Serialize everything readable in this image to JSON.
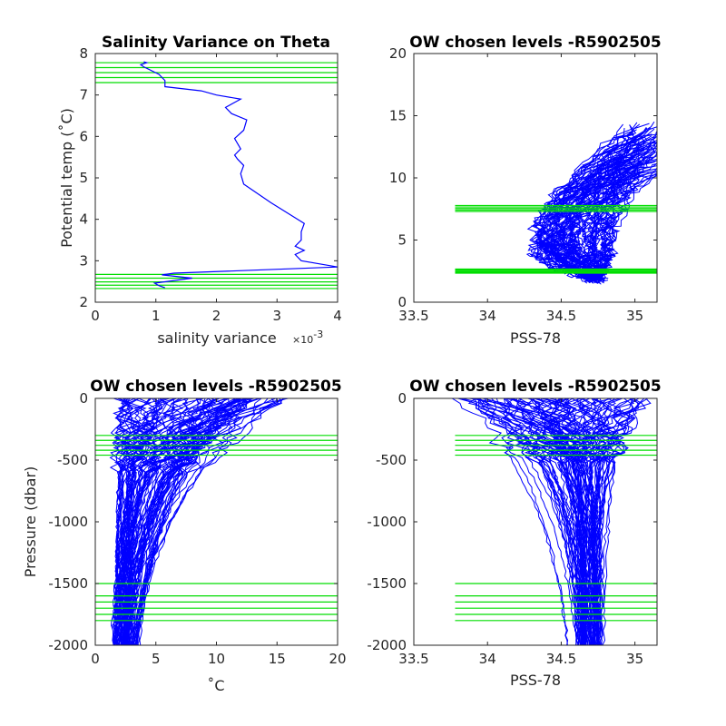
{
  "figure": {
    "background": "#ffffff",
    "profile_color": "#0000ff",
    "level_color": "#00dd00"
  },
  "chart_data": [
    {
      "id": "p1",
      "type": "line",
      "title": "Salinity Variance on Theta",
      "xlabel": "salinity variance",
      "x_multiplier_label": "×10",
      "x_multiplier_exponent": "-3",
      "ylabel": "Potential temp (˚C)",
      "xlim": [
        0,
        0.004
      ],
      "ylim": [
        2,
        8
      ],
      "xticks": [
        0,
        0.001,
        0.002,
        0.003,
        0.004
      ],
      "xtick_labels": [
        "0",
        "1",
        "2",
        "3",
        "4"
      ],
      "yticks": [
        2,
        3,
        4,
        5,
        6,
        7,
        8
      ],
      "ytick_labels": [
        "2",
        "3",
        "4",
        "5",
        "6",
        "7",
        "8"
      ],
      "series": [
        {
          "x": [
            0.00115,
            0.00105,
            0.00098,
            0.0016,
            0.0011,
            0.0013,
            0.004,
            0.0034,
            0.0033,
            0.00345,
            0.0033,
            0.0034,
            0.0034,
            0.00345,
            0.0029,
            0.00245,
            0.0024,
            0.00245,
            0.00235,
            0.0023,
            0.0024,
            0.0023,
            0.00245,
            0.0025,
            0.00225,
            0.00215,
            0.0024,
            0.002,
            0.00175,
            0.00115,
            0.00115,
            0.00105,
            0.0008,
            0.00075,
            0.00085,
            0.0008
          ],
          "y": [
            2.35,
            2.4,
            2.46,
            2.58,
            2.66,
            2.7,
            2.85,
            3.0,
            3.15,
            3.25,
            3.35,
            3.5,
            3.7,
            3.9,
            4.4,
            4.85,
            5.1,
            5.3,
            5.45,
            5.55,
            5.7,
            5.95,
            6.15,
            6.4,
            6.55,
            6.7,
            6.9,
            7.0,
            7.1,
            7.2,
            7.35,
            7.5,
            7.68,
            7.73,
            7.78,
            7.8
          ]
        }
      ],
      "levels": [
        2.33,
        2.41,
        2.49,
        2.58,
        2.67,
        7.3,
        7.42,
        7.54,
        7.66,
        7.78
      ]
    },
    {
      "id": "p2",
      "type": "line",
      "title": "OW chosen levels -R5902505",
      "xlabel": "PSS-78",
      "ylabel": "",
      "xlim": [
        33.5,
        35.15
      ],
      "ylim": [
        0,
        20
      ],
      "xticks": [
        33.5,
        34,
        34.5,
        35
      ],
      "xtick_labels": [
        "33.5",
        "34",
        "34.5",
        "35"
      ],
      "yticks": [
        0,
        5,
        10,
        15,
        20
      ],
      "ytick_labels": [
        "0",
        "5",
        "10",
        "15",
        "20"
      ],
      "profile_count": 90,
      "profile_shape": {
        "deep_s": 34.74,
        "deep_t": 1.7,
        "bulge_s": 34.62,
        "bulge_t": 4.6,
        "surface_s": 35.05,
        "surface_t": 12.5
      },
      "levels": [
        2.33,
        2.41,
        2.49,
        2.58,
        2.67,
        7.3,
        7.42,
        7.54,
        7.66,
        7.78
      ],
      "levels_xrange": [
        33.78,
        35.15
      ]
    },
    {
      "id": "p3",
      "type": "line",
      "title": "OW chosen levels -R5902505",
      "xlabel": "˚C",
      "ylabel": "Pressure (dbar)",
      "xlim": [
        0,
        20
      ],
      "ylim": [
        -2000,
        0
      ],
      "xticks": [
        0,
        5,
        10,
        15,
        20
      ],
      "xtick_labels": [
        "0",
        "5",
        "10",
        "15",
        "20"
      ],
      "yticks": [
        -2000,
        -1500,
        -1000,
        -500,
        0
      ],
      "ytick_labels": [
        "-2000",
        "-1500",
        "-1000",
        "-500",
        "0"
      ],
      "profile_count": 90,
      "levels": [
        -300,
        -340,
        -380,
        -420,
        -460,
        -1500,
        -1600,
        -1650,
        -1700,
        -1750,
        -1800
      ],
      "levels_xrange": [
        0,
        20
      ]
    },
    {
      "id": "p4",
      "type": "line",
      "title": "OW chosen levels -R5902505",
      "xlabel": "PSS-78",
      "ylabel": "",
      "xlim": [
        33.5,
        35.15
      ],
      "ylim": [
        -2000,
        0
      ],
      "xticks": [
        33.5,
        34,
        34.5,
        35
      ],
      "xtick_labels": [
        "33.5",
        "34",
        "34.5",
        "35"
      ],
      "yticks": [
        -2000,
        -1500,
        -1000,
        -500,
        0
      ],
      "ytick_labels": [
        "-2000",
        "-1500",
        "-1000",
        "-500",
        "0"
      ],
      "profile_count": 90,
      "levels": [
        -300,
        -340,
        -380,
        -420,
        -460,
        -1500,
        -1600,
        -1650,
        -1700,
        -1750,
        -1800
      ],
      "levels_xrange": [
        33.78,
        35.15
      ]
    }
  ]
}
